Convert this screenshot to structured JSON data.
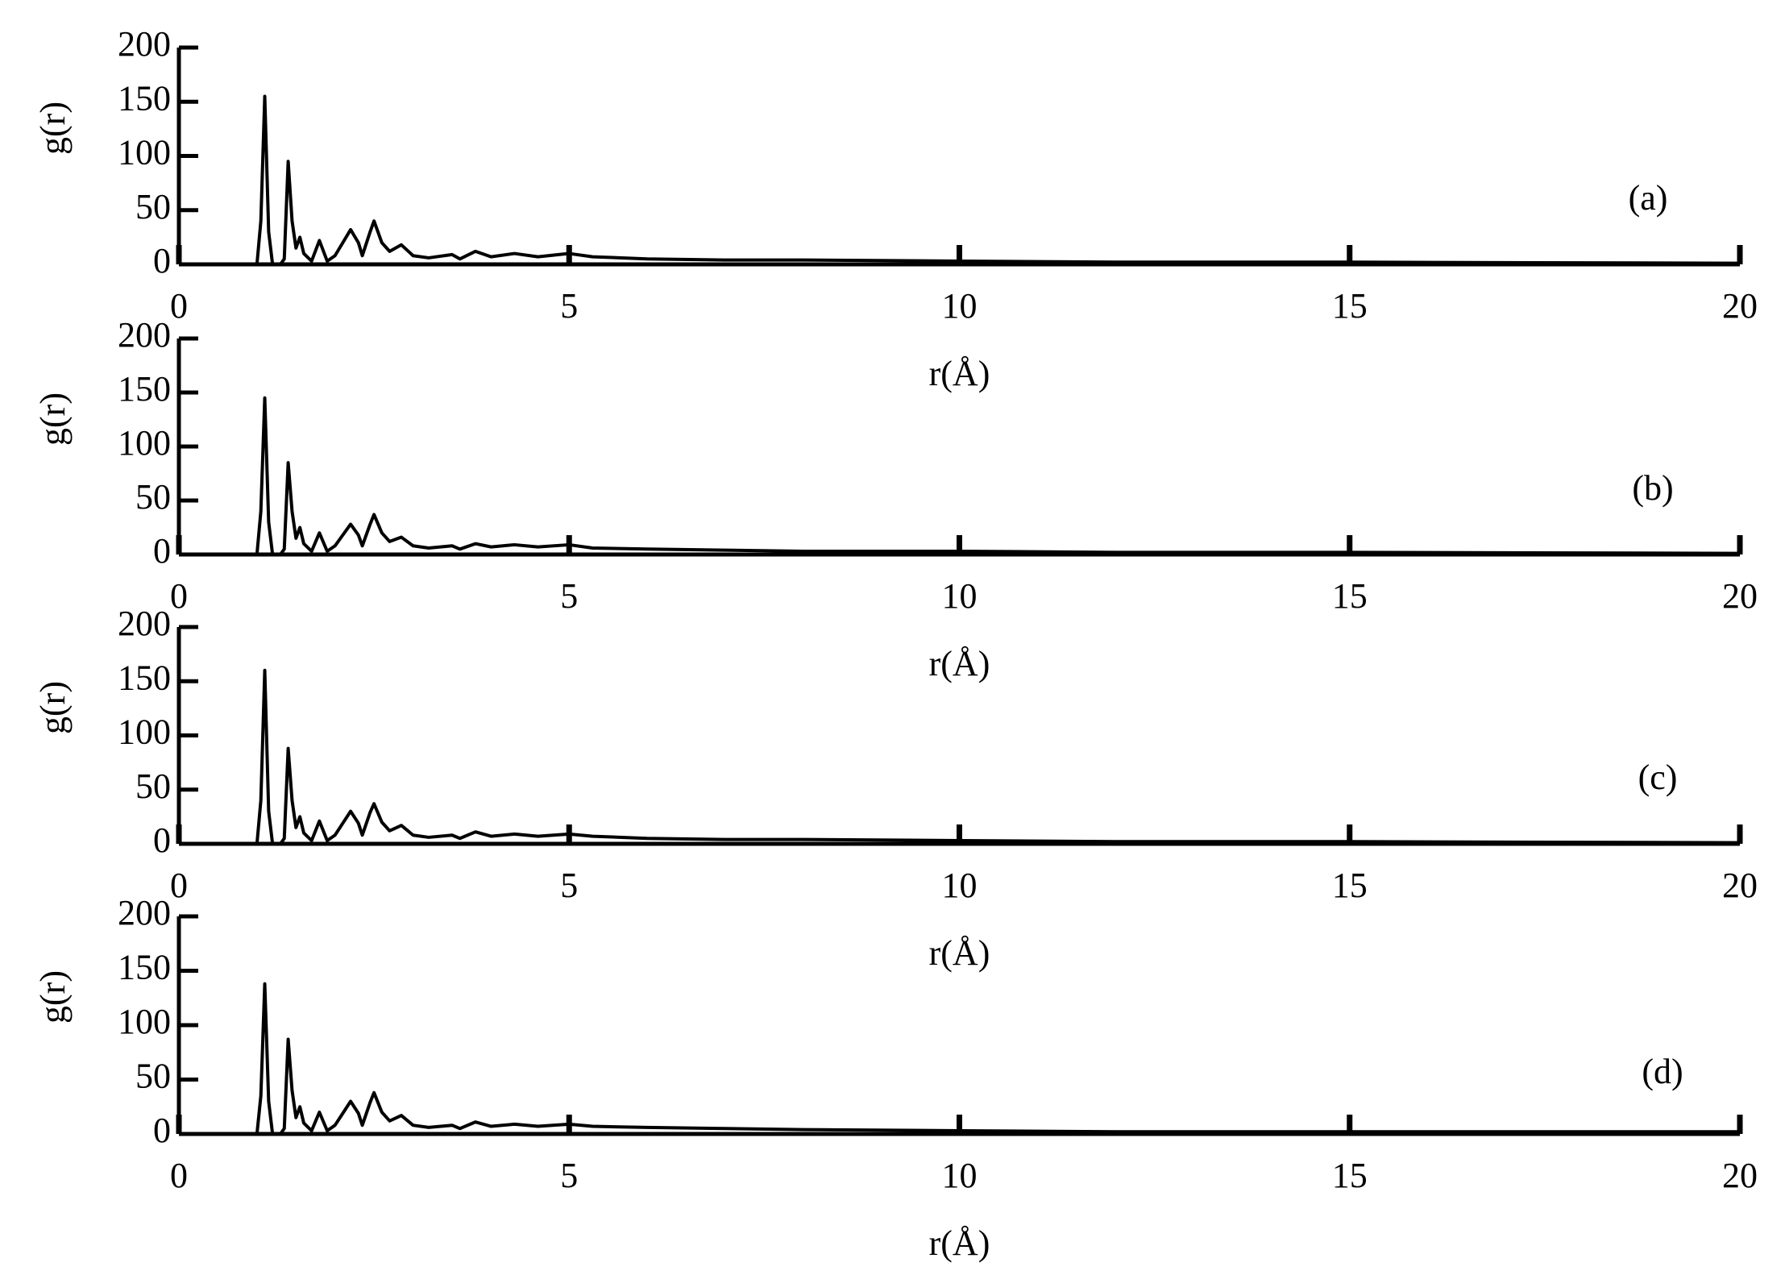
{
  "chart_data": [
    {
      "type": "line",
      "annotation": "(a)",
      "xlabel": "r(Å)",
      "ylabel": "g(r)",
      "color": "#000000",
      "x": [
        0,
        1.0,
        1.05,
        1.1,
        1.15,
        1.2,
        1.3,
        1.35,
        1.4,
        1.45,
        1.5,
        1.55,
        1.6,
        1.7,
        1.8,
        1.9,
        2.0,
        2.1,
        2.2,
        2.3,
        2.35,
        2.45,
        2.5,
        2.6,
        2.7,
        2.85,
        3.0,
        3.2,
        3.5,
        3.6,
        3.8,
        4.0,
        4.3,
        4.6,
        5.0,
        5.3,
        6,
        7,
        8,
        10,
        12,
        15,
        20
      ],
      "values": [
        0,
        0,
        40,
        155,
        30,
        0,
        0,
        5,
        95,
        40,
        15,
        25,
        10,
        3,
        22,
        3,
        8,
        20,
        32,
        20,
        8,
        30,
        40,
        20,
        12,
        18,
        8,
        6,
        9,
        5,
        12,
        7,
        10,
        7,
        10,
        7,
        5,
        4,
        4,
        3,
        2,
        2,
        1
      ],
      "xlim": [
        0,
        20
      ],
      "ylim": [
        0,
        200
      ],
      "xticks": [
        0,
        5,
        10,
        15,
        20
      ],
      "yticks": [
        0,
        50,
        100,
        150,
        200
      ]
    },
    {
      "type": "line",
      "annotation": "(b)",
      "xlabel": "r(Å)",
      "ylabel": "g(r)",
      "color": "#000000",
      "x": [
        0,
        1.0,
        1.05,
        1.1,
        1.15,
        1.2,
        1.3,
        1.35,
        1.4,
        1.45,
        1.5,
        1.55,
        1.6,
        1.7,
        1.8,
        1.9,
        2.0,
        2.1,
        2.2,
        2.3,
        2.35,
        2.45,
        2.5,
        2.6,
        2.7,
        2.85,
        3.0,
        3.2,
        3.5,
        3.6,
        3.8,
        4.0,
        4.3,
        4.6,
        5.0,
        5.3,
        6,
        7,
        8,
        10,
        12,
        15,
        20
      ],
      "values": [
        0,
        0,
        40,
        145,
        30,
        0,
        0,
        5,
        85,
        40,
        15,
        25,
        10,
        3,
        20,
        3,
        8,
        18,
        28,
        18,
        8,
        28,
        37,
        20,
        12,
        16,
        8,
        6,
        8,
        5,
        10,
        7,
        9,
        7,
        9,
        6,
        5,
        4,
        3,
        3,
        2,
        2,
        1
      ],
      "xlim": [
        0,
        20
      ],
      "ylim": [
        0,
        200
      ],
      "xticks": [
        0,
        5,
        10,
        15,
        20
      ],
      "yticks": [
        0,
        50,
        100,
        150,
        200
      ]
    },
    {
      "type": "line",
      "annotation": "(c)",
      "xlabel": "r(Å)",
      "ylabel": "g(r)",
      "color": "#000000",
      "x": [
        0,
        1.0,
        1.05,
        1.1,
        1.15,
        1.2,
        1.3,
        1.35,
        1.4,
        1.45,
        1.5,
        1.55,
        1.6,
        1.7,
        1.8,
        1.9,
        2.0,
        2.1,
        2.2,
        2.3,
        2.35,
        2.45,
        2.5,
        2.6,
        2.7,
        2.85,
        3.0,
        3.2,
        3.5,
        3.6,
        3.8,
        4.0,
        4.3,
        4.6,
        5.0,
        5.3,
        6,
        7,
        8,
        10,
        12,
        15,
        20
      ],
      "values": [
        0,
        0,
        40,
        160,
        30,
        0,
        0,
        5,
        88,
        40,
        15,
        25,
        10,
        3,
        21,
        3,
        8,
        19,
        30,
        19,
        8,
        29,
        37,
        20,
        12,
        17,
        8,
        6,
        8,
        5,
        11,
        7,
        9,
        7,
        9,
        7,
        5,
        4,
        4,
        3,
        2,
        2,
        1
      ],
      "xlim": [
        0,
        20
      ],
      "ylim": [
        0,
        200
      ],
      "xticks": [
        0,
        5,
        10,
        15,
        20
      ],
      "yticks": [
        0,
        50,
        100,
        150,
        200
      ]
    },
    {
      "type": "line",
      "annotation": "(d)",
      "xlabel": "r(Å)",
      "ylabel": "g(r)",
      "color": "#000000",
      "x": [
        0,
        1.0,
        1.05,
        1.1,
        1.15,
        1.2,
        1.3,
        1.35,
        1.4,
        1.45,
        1.5,
        1.55,
        1.6,
        1.7,
        1.8,
        1.9,
        2.0,
        2.1,
        2.2,
        2.3,
        2.35,
        2.45,
        2.5,
        2.6,
        2.7,
        2.85,
        3.0,
        3.2,
        3.5,
        3.6,
        3.8,
        4.0,
        4.3,
        4.6,
        5.0,
        5.3,
        6,
        7,
        8,
        10,
        12,
        15,
        20
      ],
      "values": [
        0,
        0,
        35,
        138,
        30,
        0,
        0,
        5,
        87,
        40,
        15,
        25,
        10,
        3,
        20,
        3,
        8,
        19,
        30,
        19,
        8,
        29,
        38,
        20,
        12,
        17,
        8,
        6,
        8,
        5,
        11,
        7,
        9,
        7,
        9,
        7,
        6,
        5,
        4,
        3,
        2,
        2,
        2
      ],
      "xlim": [
        0,
        20
      ],
      "ylim": [
        0,
        200
      ],
      "xticks": [
        0,
        5,
        10,
        15,
        20
      ],
      "yticks": [
        0,
        50,
        100,
        150,
        200
      ]
    }
  ]
}
